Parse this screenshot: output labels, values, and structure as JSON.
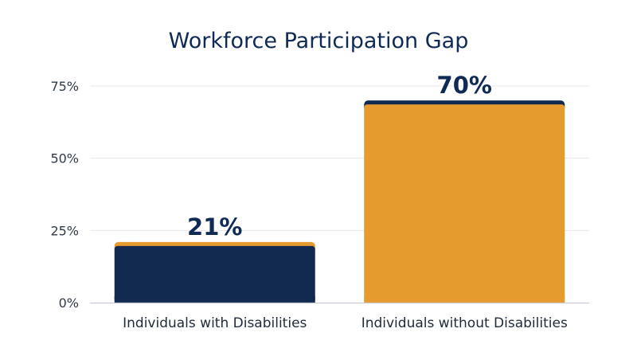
{
  "chart_data": {
    "type": "bar",
    "title": "Workforce Participation Gap",
    "categories": [
      "Individuals with Disabilities",
      "Individuals without Disabilities"
    ],
    "values": [
      21,
      70
    ],
    "data_labels": [
      "21%",
      "70%"
    ],
    "xlabel": "",
    "ylabel": "",
    "ylim": [
      0,
      75
    ],
    "yticks": [
      0,
      25,
      50,
      75
    ],
    "ytick_labels": [
      "0%",
      "25%",
      "50%",
      "75%"
    ],
    "grid": true,
    "bar_colors": [
      "#122a4f",
      "#e69b2f"
    ],
    "bar_cap_colors": [
      "#e69b2f",
      "#122a4f"
    ]
  }
}
